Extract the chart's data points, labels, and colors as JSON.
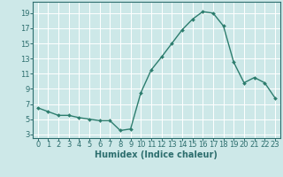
{
  "x": [
    0,
    1,
    2,
    3,
    4,
    5,
    6,
    7,
    8,
    9,
    10,
    11,
    12,
    13,
    14,
    15,
    16,
    17,
    18,
    19,
    20,
    21,
    22,
    23
  ],
  "y": [
    6.5,
    6.0,
    5.5,
    5.5,
    5.2,
    5.0,
    4.8,
    4.8,
    3.5,
    3.7,
    8.5,
    11.5,
    13.2,
    15.0,
    16.8,
    18.2,
    19.2,
    19.0,
    17.3,
    12.5,
    9.8,
    10.5,
    9.8,
    7.8
  ],
  "line_color": "#2d7d6e",
  "marker": "D",
  "marker_size": 2.0,
  "bg_color": "#cde8e8",
  "grid_color": "#ffffff",
  "xlabel": "Humidex (Indice chaleur)",
  "xlim": [
    -0.5,
    23.5
  ],
  "ylim": [
    2.5,
    20.5
  ],
  "yticks": [
    3,
    5,
    7,
    9,
    11,
    13,
    15,
    17,
    19
  ],
  "xticks": [
    0,
    1,
    2,
    3,
    4,
    5,
    6,
    7,
    8,
    9,
    10,
    11,
    12,
    13,
    14,
    15,
    16,
    17,
    18,
    19,
    20,
    21,
    22,
    23
  ],
  "line_width": 1.0,
  "xlabel_fontsize": 7.0,
  "tick_fontsize": 6.0,
  "tick_color": "#2d6e6e",
  "axis_color": "#2d6e6e"
}
